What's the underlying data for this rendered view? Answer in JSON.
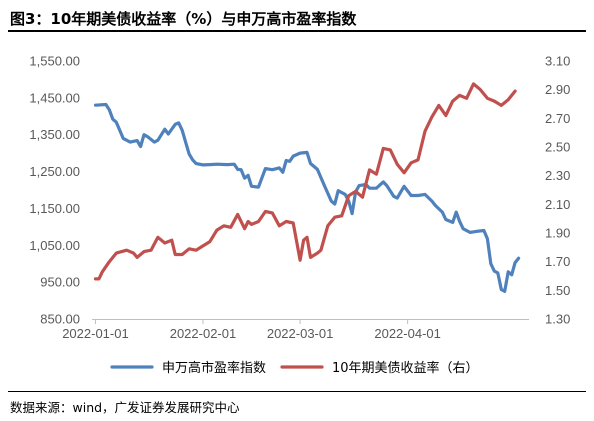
{
  "header": {
    "title": "图3：10年期美债收益率（%）与申万高市盈率指数"
  },
  "footer": {
    "source": "数据来源：wind，广发证券发展研究中心"
  },
  "chart_data": {
    "type": "line",
    "title": "图3：10年期美债收益率（%）与申万高市盈率指数",
    "x_tick_labels": [
      "2022-01-01",
      "2022-02-01",
      "2022-03-01",
      "2022-04-01"
    ],
    "x_tick_values": [
      "2022-01-01",
      "2022-02-01",
      "2022-03-01",
      "2022-04-01"
    ],
    "x_range": [
      "2021-12-31",
      "2022-05-06"
    ],
    "y_left": {
      "range": [
        850,
        1550
      ],
      "ticks": [
        850,
        950,
        1050,
        1150,
        1250,
        1350,
        1450,
        1550
      ],
      "tick_labels": [
        "850.00",
        "950.00",
        "1,050.00",
        "1,150.00",
        "1,250.00",
        "1,350.00",
        "1,450.00",
        "1,550.00"
      ]
    },
    "y_right": {
      "range": [
        1.3,
        3.1
      ],
      "ticks": [
        1.3,
        1.5,
        1.7,
        1.9,
        2.1,
        2.3,
        2.5,
        2.7,
        2.9,
        3.1
      ],
      "tick_labels": [
        "1.30",
        "1.50",
        "1.70",
        "1.90",
        "2.10",
        "2.30",
        "2.50",
        "2.70",
        "2.90",
        "3.10"
      ]
    },
    "grid": false,
    "legend_position": "bottom",
    "series": [
      {
        "name": "申万高市盈率指数",
        "axis": "left",
        "color": "#4f81bd",
        "points": [
          [
            "2022-01-01",
            1430
          ],
          [
            "2022-01-04",
            1432
          ],
          [
            "2022-01-05",
            1418
          ],
          [
            "2022-01-06",
            1392
          ],
          [
            "2022-01-07",
            1384
          ],
          [
            "2022-01-09",
            1340
          ],
          [
            "2022-01-11",
            1330
          ],
          [
            "2022-01-13",
            1334
          ],
          [
            "2022-01-14",
            1318
          ],
          [
            "2022-01-15",
            1350
          ],
          [
            "2022-01-16",
            1345
          ],
          [
            "2022-01-18",
            1330
          ],
          [
            "2022-01-19",
            1335
          ],
          [
            "2022-01-21",
            1365
          ],
          [
            "2022-01-22",
            1352
          ],
          [
            "2022-01-24",
            1378
          ],
          [
            "2022-01-25",
            1382
          ],
          [
            "2022-01-26",
            1362
          ],
          [
            "2022-01-27",
            1330
          ],
          [
            "2022-01-28",
            1298
          ],
          [
            "2022-01-29",
            1282
          ],
          [
            "2022-01-30",
            1272
          ],
          [
            "2022-02-01",
            1268
          ],
          [
            "2022-02-03",
            1269
          ],
          [
            "2022-02-05",
            1270
          ],
          [
            "2022-02-08",
            1269
          ],
          [
            "2022-02-10",
            1270
          ],
          [
            "2022-02-11",
            1256
          ],
          [
            "2022-02-12",
            1255
          ],
          [
            "2022-02-13",
            1232
          ],
          [
            "2022-02-14",
            1240
          ],
          [
            "2022-02-15",
            1210
          ],
          [
            "2022-02-17",
            1208
          ],
          [
            "2022-02-19",
            1258
          ],
          [
            "2022-02-21",
            1255
          ],
          [
            "2022-02-23",
            1260
          ],
          [
            "2022-02-24",
            1248
          ],
          [
            "2022-02-25",
            1280
          ],
          [
            "2022-02-26",
            1278
          ],
          [
            "2022-02-27",
            1292
          ],
          [
            "2022-03-01",
            1300
          ],
          [
            "2022-03-03",
            1302
          ],
          [
            "2022-03-04",
            1272
          ],
          [
            "2022-03-06",
            1256
          ],
          [
            "2022-03-08",
            1212
          ],
          [
            "2022-03-10",
            1170
          ],
          [
            "2022-03-11",
            1162
          ],
          [
            "2022-03-12",
            1198
          ],
          [
            "2022-03-14",
            1188
          ],
          [
            "2022-03-15",
            1170
          ],
          [
            "2022-03-16",
            1136
          ],
          [
            "2022-03-17",
            1195
          ],
          [
            "2022-03-18",
            1212
          ],
          [
            "2022-03-20",
            1215
          ],
          [
            "2022-03-21",
            1205
          ],
          [
            "2022-03-23",
            1205
          ],
          [
            "2022-03-25",
            1222
          ],
          [
            "2022-03-26",
            1212
          ],
          [
            "2022-03-28",
            1183
          ],
          [
            "2022-03-29",
            1178
          ],
          [
            "2022-03-31",
            1210
          ],
          [
            "2022-04-02",
            1185
          ],
          [
            "2022-04-04",
            1185
          ],
          [
            "2022-04-06",
            1188
          ],
          [
            "2022-04-08",
            1170
          ],
          [
            "2022-04-09",
            1158
          ],
          [
            "2022-04-11",
            1140
          ],
          [
            "2022-04-12",
            1120
          ],
          [
            "2022-04-14",
            1112
          ],
          [
            "2022-04-15",
            1140
          ],
          [
            "2022-04-16",
            1115
          ],
          [
            "2022-04-17",
            1095
          ],
          [
            "2022-04-19",
            1085
          ],
          [
            "2022-04-21",
            1088
          ],
          [
            "2022-04-23",
            1090
          ],
          [
            "2022-04-24",
            1068
          ],
          [
            "2022-04-25",
            1000
          ],
          [
            "2022-04-26",
            980
          ],
          [
            "2022-04-27",
            975
          ],
          [
            "2022-04-28",
            930
          ],
          [
            "2022-04-29",
            925
          ],
          [
            "2022-04-30",
            978
          ],
          [
            "2022-05-01",
            970
          ],
          [
            "2022-05-02",
            1003
          ],
          [
            "2022-05-03",
            1015
          ]
        ]
      },
      {
        "name": "10年期美债收益率（右）",
        "axis": "right",
        "color": "#c0504d",
        "points": [
          [
            "2022-01-01",
            1.58
          ],
          [
            "2022-01-02",
            1.58
          ],
          [
            "2022-01-03",
            1.63
          ],
          [
            "2022-01-05",
            1.7
          ],
          [
            "2022-01-07",
            1.76
          ],
          [
            "2022-01-10",
            1.78
          ],
          [
            "2022-01-12",
            1.76
          ],
          [
            "2022-01-13",
            1.73
          ],
          [
            "2022-01-15",
            1.77
          ],
          [
            "2022-01-17",
            1.78
          ],
          [
            "2022-01-19",
            1.87
          ],
          [
            "2022-01-21",
            1.83
          ],
          [
            "2022-01-23",
            1.85
          ],
          [
            "2022-01-24",
            1.75
          ],
          [
            "2022-01-26",
            1.75
          ],
          [
            "2022-01-28",
            1.79
          ],
          [
            "2022-01-30",
            1.78
          ],
          [
            "2022-02-01",
            1.81
          ],
          [
            "2022-02-03",
            1.84
          ],
          [
            "2022-02-05",
            1.92
          ],
          [
            "2022-02-07",
            1.95
          ],
          [
            "2022-02-09",
            1.94
          ],
          [
            "2022-02-11",
            2.03
          ],
          [
            "2022-02-13",
            1.93
          ],
          [
            "2022-02-14",
            1.98
          ],
          [
            "2022-02-15",
            1.96
          ],
          [
            "2022-02-17",
            1.98
          ],
          [
            "2022-02-19",
            2.05
          ],
          [
            "2022-02-21",
            2.04
          ],
          [
            "2022-02-23",
            1.95
          ],
          [
            "2022-02-25",
            1.98
          ],
          [
            "2022-02-27",
            1.97
          ],
          [
            "2022-03-01",
            1.71
          ],
          [
            "2022-03-02",
            1.85
          ],
          [
            "2022-03-03",
            1.87
          ],
          [
            "2022-03-04",
            1.73
          ],
          [
            "2022-03-06",
            1.76
          ],
          [
            "2022-03-07",
            1.78
          ],
          [
            "2022-03-09",
            1.95
          ],
          [
            "2022-03-11",
            2.01
          ],
          [
            "2022-03-13",
            2.02
          ],
          [
            "2022-03-15",
            2.16
          ],
          [
            "2022-03-17",
            2.19
          ],
          [
            "2022-03-19",
            2.15
          ],
          [
            "2022-03-21",
            2.34
          ],
          [
            "2022-03-23",
            2.31
          ],
          [
            "2022-03-25",
            2.49
          ],
          [
            "2022-03-27",
            2.48
          ],
          [
            "2022-03-29",
            2.38
          ],
          [
            "2022-03-31",
            2.32
          ],
          [
            "2022-04-02",
            2.39
          ],
          [
            "2022-04-04",
            2.41
          ],
          [
            "2022-04-06",
            2.61
          ],
          [
            "2022-04-08",
            2.71
          ],
          [
            "2022-04-10",
            2.79
          ],
          [
            "2022-04-12",
            2.72
          ],
          [
            "2022-04-14",
            2.82
          ],
          [
            "2022-04-16",
            2.86
          ],
          [
            "2022-04-18",
            2.84
          ],
          [
            "2022-04-20",
            2.94
          ],
          [
            "2022-04-22",
            2.9
          ],
          [
            "2022-04-24",
            2.84
          ],
          [
            "2022-04-26",
            2.82
          ],
          [
            "2022-04-28",
            2.79
          ],
          [
            "2022-04-30",
            2.83
          ],
          [
            "2022-05-02",
            2.89
          ]
        ]
      }
    ]
  }
}
